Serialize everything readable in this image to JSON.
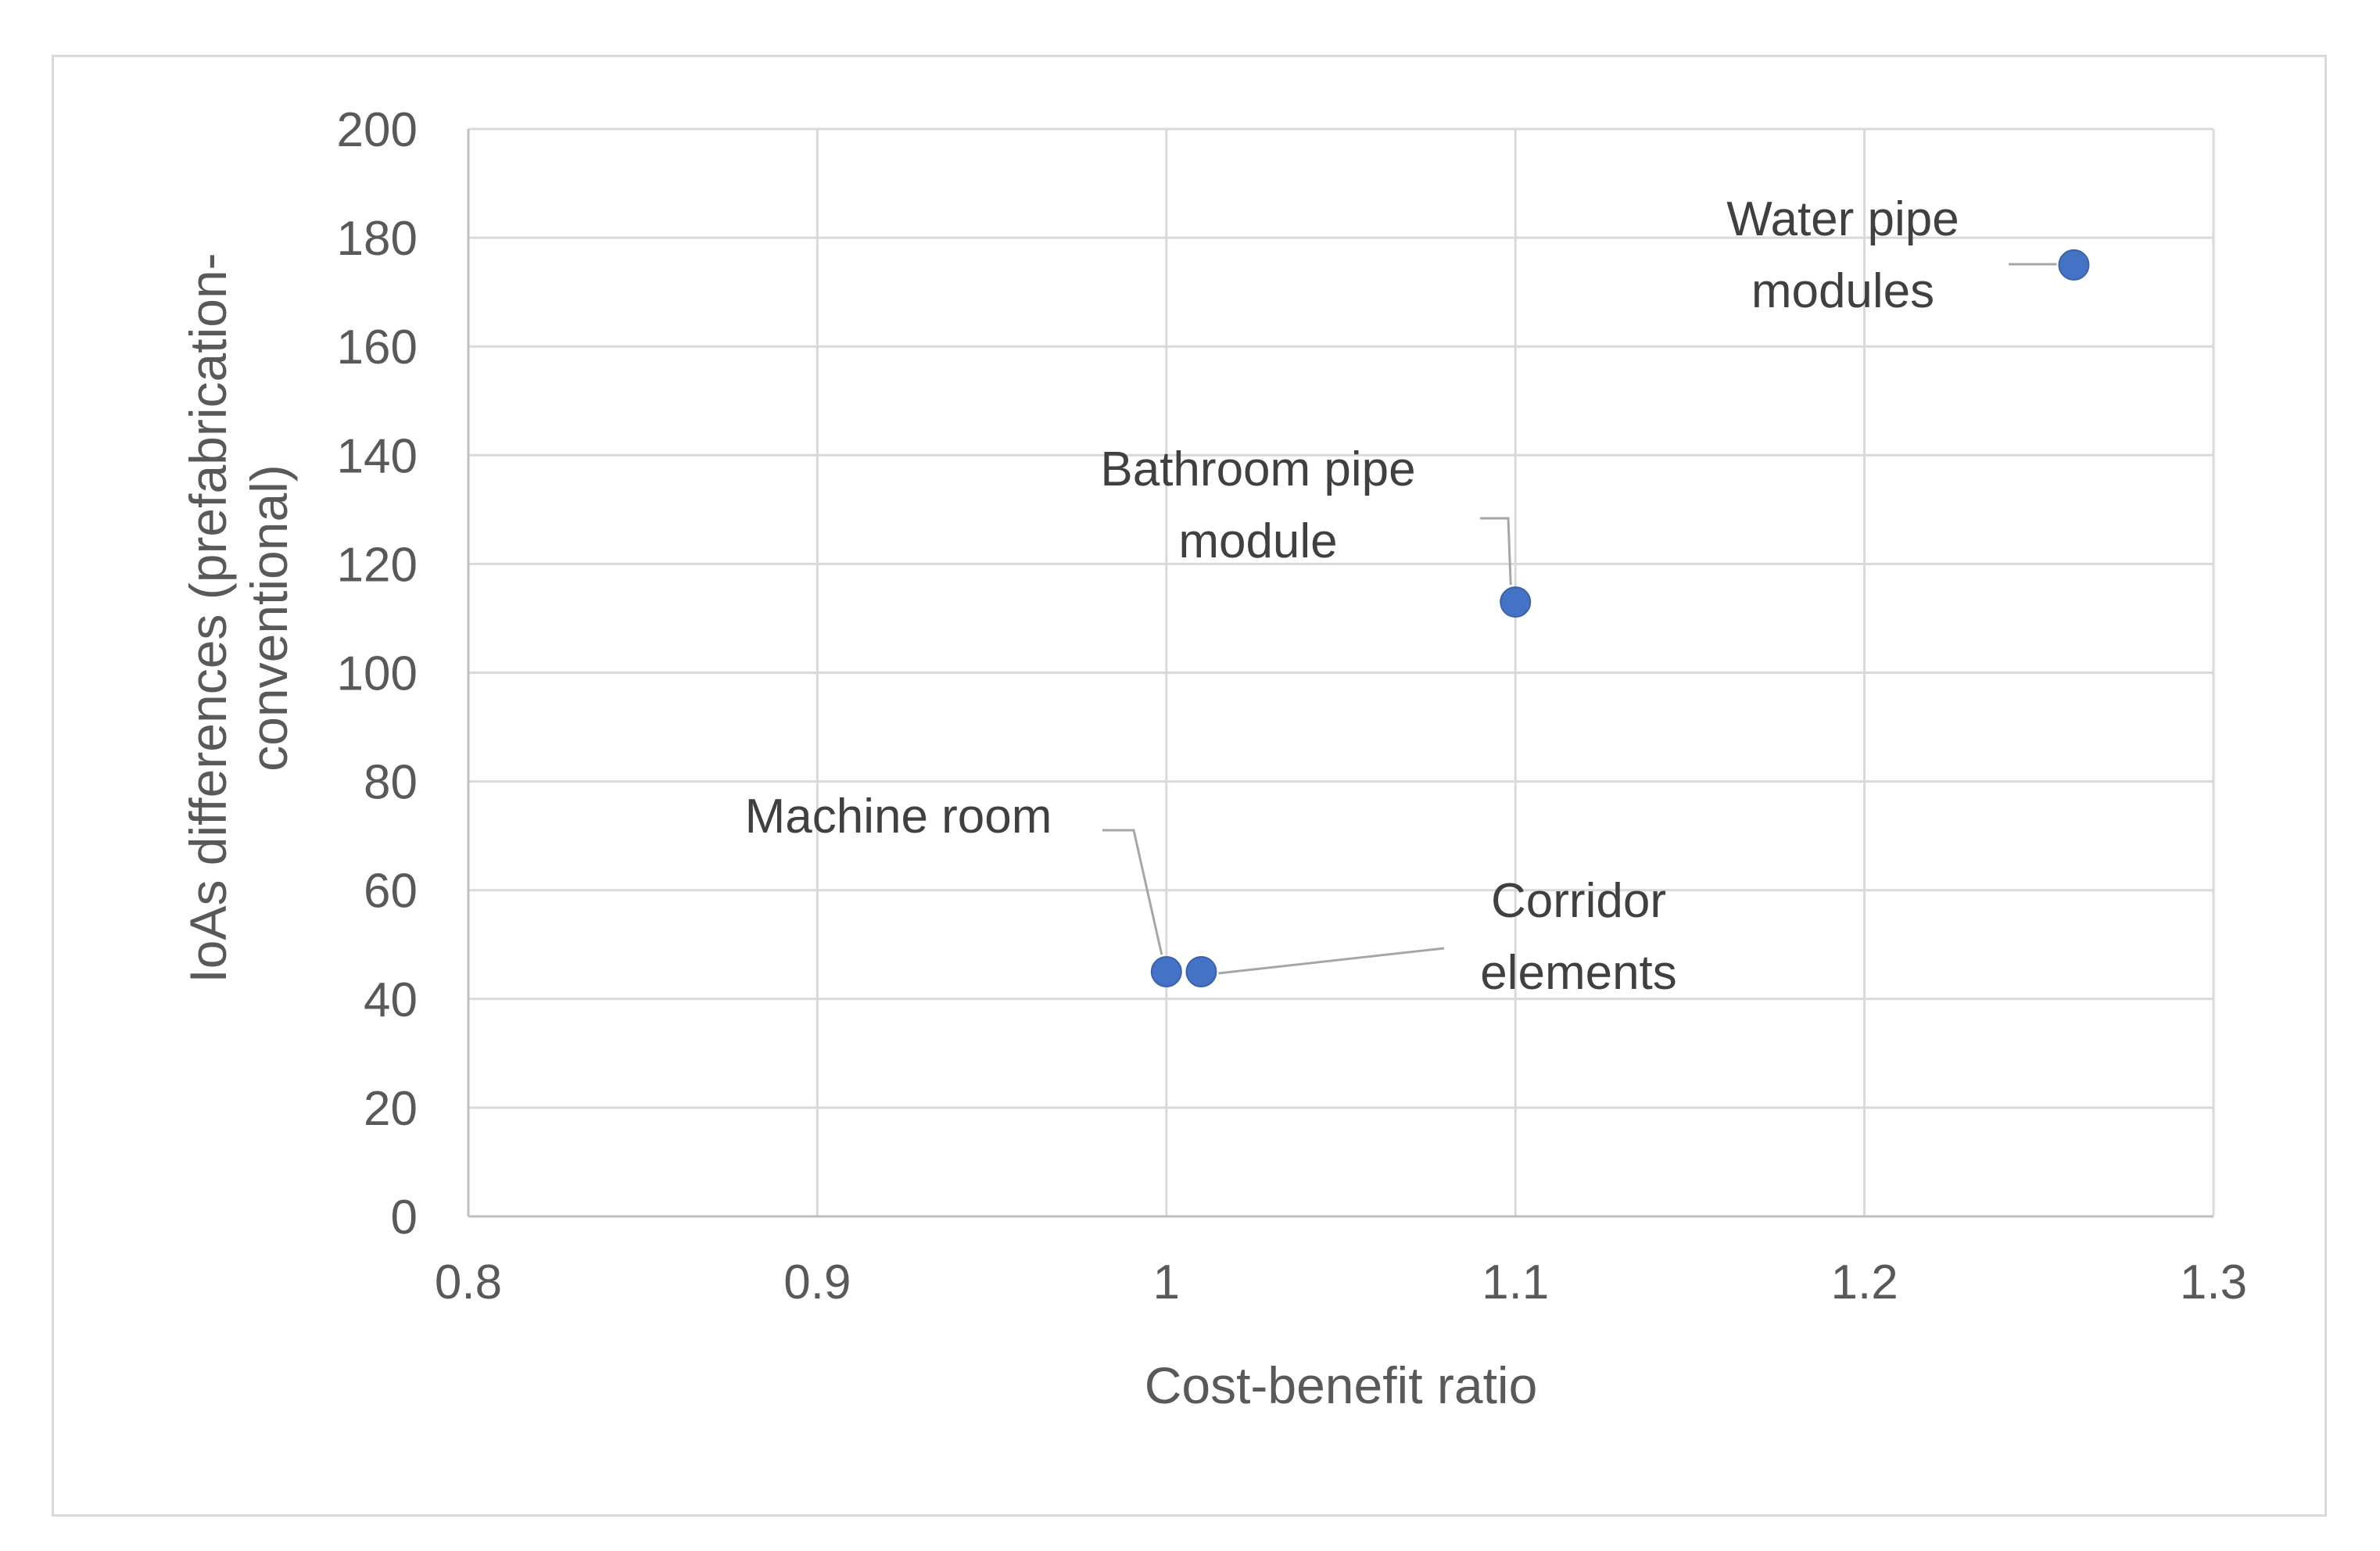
{
  "chart_data": {
    "type": "scatter",
    "title": "",
    "xlabel": "Cost-benefit ratio",
    "ylabel_lines": [
      "IoAs differences (prefabrication-",
      "conventional)"
    ],
    "xlim": [
      0.8,
      1.3
    ],
    "ylim": [
      0,
      200
    ],
    "x_ticks": [
      0.8,
      0.9,
      1,
      1.1,
      1.2,
      1.3
    ],
    "x_tick_labels": [
      "0.8",
      "0.9",
      "1",
      "1.1",
      "1.2",
      "1.3"
    ],
    "y_ticks": [
      0,
      20,
      40,
      60,
      80,
      100,
      120,
      140,
      160,
      180,
      200
    ],
    "y_tick_labels": [
      "0",
      "20",
      "40",
      "60",
      "80",
      "100",
      "120",
      "140",
      "160",
      "180",
      "200"
    ],
    "grid": true,
    "marker_color": "#4472c4",
    "points": [
      {
        "x": 1.0,
        "y": 45,
        "label_lines": [
          "Machine room"
        ]
      },
      {
        "x": 1.01,
        "y": 45,
        "label_lines": [
          "Corridor",
          "elements"
        ]
      },
      {
        "x": 1.1,
        "y": 113,
        "label_lines": [
          "Bathroom pipe",
          "module"
        ]
      },
      {
        "x": 1.26,
        "y": 175,
        "label_lines": [
          "Water pipe",
          "modules"
        ]
      }
    ]
  }
}
